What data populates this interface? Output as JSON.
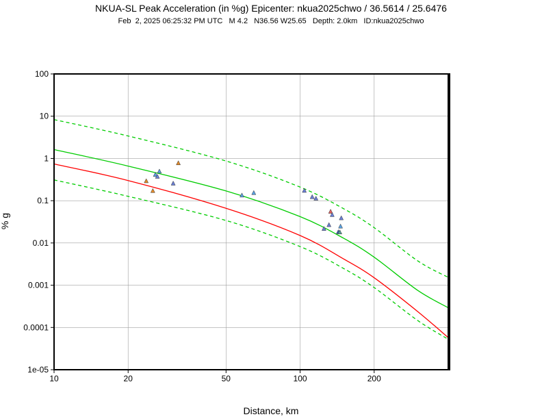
{
  "header": {
    "title": "NKUA-SL Peak Acceleration (in %g) Epicenter: nkua2025chwo / 36.5614 / 25.6476",
    "subtitle": "Feb  2, 2025 06:25:32 PM UTC   M 4.2   N36.56 W25.65   Depth: 2.0km   ID:nkua2025chwo"
  },
  "chart_data": {
    "type": "scatter",
    "xlabel": "Distance, km",
    "ylabel": "% g",
    "x_scale": "log",
    "y_scale": "log",
    "xlim": [
      10,
      400
    ],
    "ylim": [
      1e-05,
      100
    ],
    "grid": true,
    "x_ticks": [
      {
        "value": 10,
        "label": "10"
      },
      {
        "value": 20,
        "label": "20"
      },
      {
        "value": 50,
        "label": "50"
      },
      {
        "value": 100,
        "label": "100"
      },
      {
        "value": 200,
        "label": "200"
      }
    ],
    "y_ticks": [
      {
        "value": 100,
        "label": "100"
      },
      {
        "value": 10,
        "label": "10"
      },
      {
        "value": 1,
        "label": "1"
      },
      {
        "value": 0.1,
        "label": "0.1"
      },
      {
        "value": 0.01,
        "label": "0.01"
      },
      {
        "value": 0.001,
        "label": "0.001"
      },
      {
        "value": 0.0001,
        "label": "0.0001"
      },
      {
        "value": 1e-05,
        "label": "1e-05"
      }
    ],
    "curves": [
      {
        "style": "dashed",
        "color": "#00cc00",
        "x": [
          10,
          20,
          50,
          100,
          150,
          200,
          300,
          400
        ],
        "y": [
          8.3,
          3.4,
          0.87,
          0.21,
          0.065,
          0.023,
          0.0038,
          0.00153
        ]
      },
      {
        "style": "solid",
        "color": "#00cc00",
        "x": [
          10,
          20,
          50,
          100,
          150,
          200,
          300,
          400
        ],
        "y": [
          1.62,
          0.66,
          0.17,
          0.042,
          0.013,
          0.0046,
          0.00076,
          0.000292
        ]
      },
      {
        "style": "solid",
        "color": "#ff0000",
        "x": [
          10,
          20,
          50,
          100,
          150,
          200,
          300,
          400
        ],
        "y": [
          0.74,
          0.3,
          0.066,
          0.015,
          0.0042,
          0.0015,
          0.00024,
          5.75e-05
        ]
      },
      {
        "style": "dashed",
        "color": "#00cc00",
        "x": [
          10,
          20,
          50,
          100,
          150,
          200,
          300,
          400
        ],
        "y": [
          0.31,
          0.127,
          0.034,
          0.0082,
          0.0025,
          0.00088,
          0.000147,
          5.25e-05
        ]
      }
    ],
    "points": [
      {
        "x": 23.7,
        "y": 0.29,
        "color": "#e08a2c"
      },
      {
        "x": 25.2,
        "y": 0.17,
        "color": "#e08a2c"
      },
      {
        "x": 25.8,
        "y": 0.41,
        "color": "#5aa0e0"
      },
      {
        "x": 26.3,
        "y": 0.37,
        "color": "#6a7fd6"
      },
      {
        "x": 26.8,
        "y": 0.49,
        "color": "#5aa0e0"
      },
      {
        "x": 30.5,
        "y": 0.255,
        "color": "#6a7fd6"
      },
      {
        "x": 32.0,
        "y": 0.77,
        "color": "#e08a2c"
      },
      {
        "x": 58.0,
        "y": 0.133,
        "color": "#5aa0e0"
      },
      {
        "x": 64.8,
        "y": 0.152,
        "color": "#5aa0e0"
      },
      {
        "x": 104.0,
        "y": 0.172,
        "color": "#6a7fd6"
      },
      {
        "x": 112.0,
        "y": 0.122,
        "color": "#6a7fd6"
      },
      {
        "x": 116.0,
        "y": 0.112,
        "color": "#6a7fd6"
      },
      {
        "x": 125.0,
        "y": 0.0215,
        "color": "#6a7fd6"
      },
      {
        "x": 131.0,
        "y": 0.0265,
        "color": "#6a7fd6"
      },
      {
        "x": 133.0,
        "y": 0.055,
        "color": "#e06060"
      },
      {
        "x": 135.0,
        "y": 0.046,
        "color": "#6a7fd6"
      },
      {
        "x": 143.0,
        "y": 0.018,
        "color": "#3a5fb0"
      },
      {
        "x": 145.0,
        "y": 0.0178,
        "color": "#5a9a9a"
      },
      {
        "x": 146.0,
        "y": 0.0245,
        "color": "#5aa0e0"
      },
      {
        "x": 147.0,
        "y": 0.0385,
        "color": "#6a7fd6"
      }
    ]
  }
}
